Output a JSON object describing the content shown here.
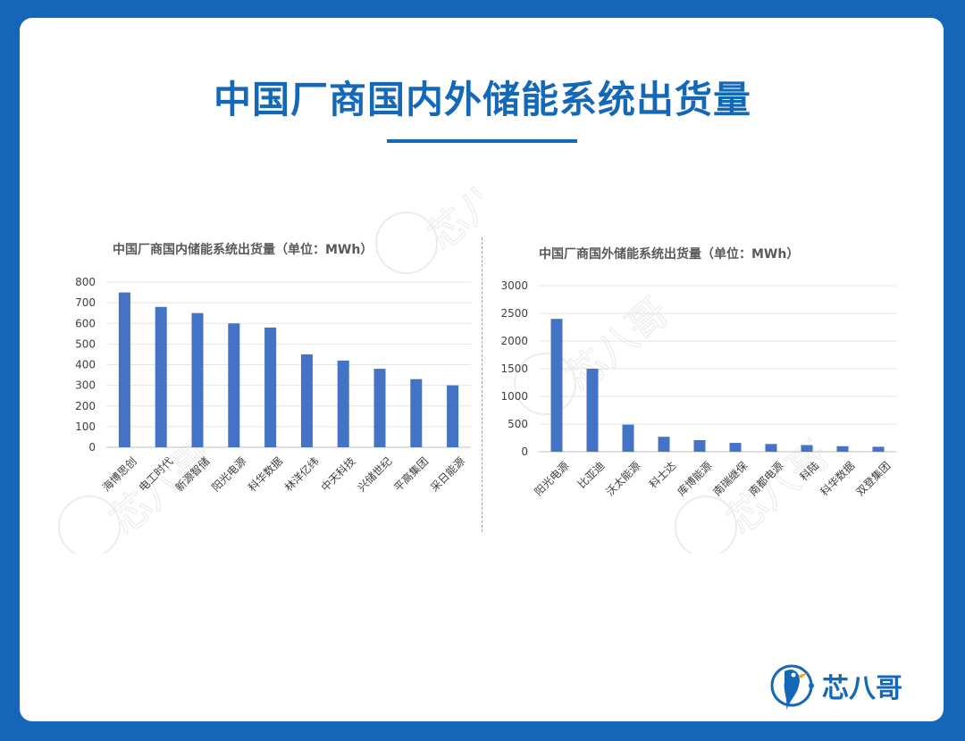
{
  "page": {
    "title": "中国厂商国内外储能系统出货量"
  },
  "brand": {
    "name": "芯八哥",
    "watermark": "芯八哥"
  },
  "colors": {
    "bar": "#4472c4",
    "accent": "#1468b8",
    "background": "#1565b8"
  },
  "chart_data": [
    {
      "type": "bar",
      "title": "中国厂商国内储能系统出货量（单位：MWh）",
      "categories": [
        "海博思创",
        "电工时代",
        "新源智储",
        "阳光电源",
        "科华数据",
        "林洋亿纬",
        "中天科技",
        "兴储世纪",
        "平高集团",
        "采日能源"
      ],
      "values": [
        750,
        680,
        650,
        600,
        580,
        450,
        420,
        380,
        330,
        300
      ],
      "ylim": [
        0,
        800
      ],
      "yticks": [
        0,
        100,
        200,
        300,
        400,
        500,
        600,
        700,
        800
      ],
      "grid": true,
      "xlabel": "",
      "ylabel": ""
    },
    {
      "type": "bar",
      "title": "中国厂商国外储能系统出货量（单位：MWh）",
      "categories": [
        "阳光电源",
        "比亚迪",
        "沃太能源",
        "科士达",
        "库博能源",
        "南瑞继保",
        "南都电源",
        "科陆",
        "科华数据",
        "双登集团"
      ],
      "values": [
        2400,
        1500,
        490,
        270,
        210,
        160,
        140,
        120,
        100,
        90
      ],
      "ylim": [
        0,
        3000
      ],
      "yticks": [
        0,
        500,
        1000,
        1500,
        2000,
        2500,
        3000
      ],
      "grid": true,
      "xlabel": "",
      "ylabel": ""
    }
  ]
}
